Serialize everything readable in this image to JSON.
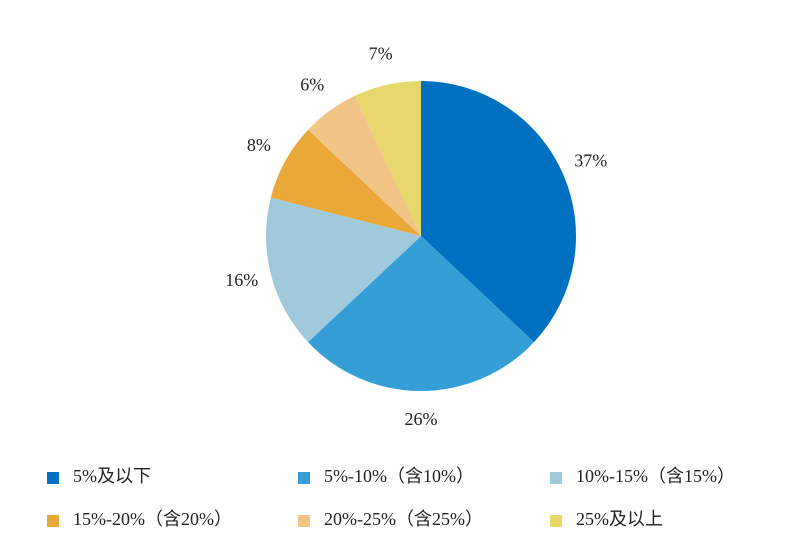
{
  "chart_data": {
    "type": "pie",
    "categories": [
      "5%及以下",
      "5%-10%（含10%）",
      "10%-15%（含15%）",
      "15%-20%（含20%）",
      "20%-25%（含25%）",
      "25%及以上"
    ],
    "values": [
      37,
      26,
      16,
      8,
      6,
      7
    ],
    "value_labels": [
      "37%",
      "26%",
      "16%",
      "8%",
      "6%",
      "7%"
    ],
    "colors": [
      "#0070c0",
      "#339fd6",
      "#a0cadb",
      "#e9a838",
      "#f0c585",
      "#e6d86a"
    ],
    "legend": "bottom"
  }
}
